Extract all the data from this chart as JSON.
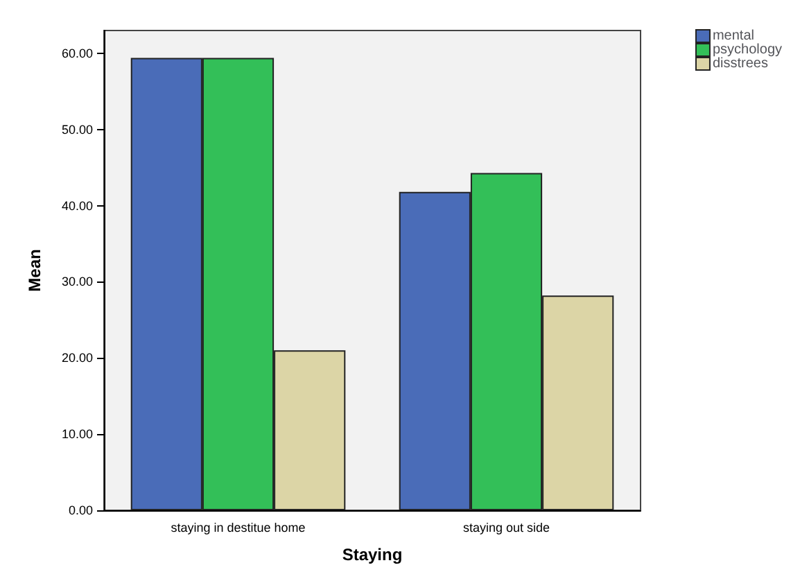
{
  "chart_data": {
    "type": "bar",
    "xlabel": "Staying",
    "ylabel": "Mean",
    "categories": [
      "staying in destitue home",
      "staying out side"
    ],
    "series": [
      {
        "name": "mental",
        "color": "#4a6cb8",
        "values": [
          59.4,
          41.8
        ]
      },
      {
        "name": "psychology",
        "color": "#33bf58",
        "values": [
          59.4,
          44.3
        ]
      },
      {
        "name": "disstrees",
        "color": "#dcd5a6",
        "values": [
          21.0,
          28.2
        ]
      }
    ],
    "ylim": [
      0,
      63
    ],
    "yticks": [
      {
        "value": 0,
        "label": "0.00"
      },
      {
        "value": 10,
        "label": "10.00"
      },
      {
        "value": 20,
        "label": "20.00"
      },
      {
        "value": 30,
        "label": "30.00"
      },
      {
        "value": 40,
        "label": "40.00"
      },
      {
        "value": 50,
        "label": "50.00"
      },
      {
        "value": 60,
        "label": "60.00"
      }
    ],
    "grid": false,
    "legend": "top right"
  }
}
